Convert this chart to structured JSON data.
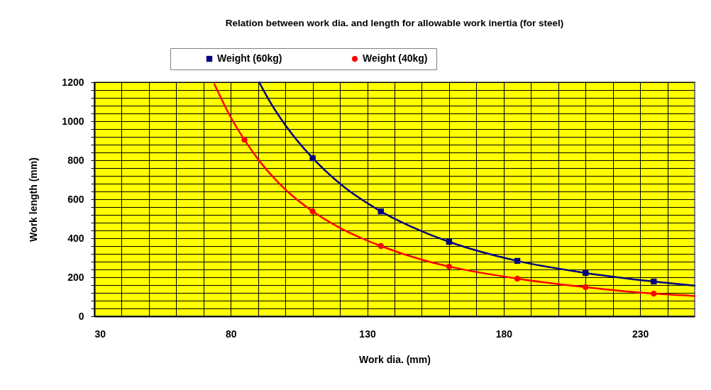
{
  "chart_data": {
    "type": "line",
    "title": "Relation between work dia. and length for allowable work inertia (for steel)",
    "xlabel": "Work dia. (mm)",
    "ylabel": "Work length  (mm)",
    "xlim": [
      30,
      250
    ],
    "xticks": [
      30,
      {
        "value": 40,
        "label": null
      },
      {
        "value": 50,
        "label": null
      },
      {
        "value": 60,
        "label": null
      },
      {
        "value": 70,
        "label": null
      },
      80,
      {
        "value": 90,
        "label": null
      },
      {
        "value": 100,
        "label": null
      },
      {
        "value": 110,
        "label": null
      },
      {
        "value": 120,
        "label": null
      },
      130,
      {
        "value": 140,
        "label": null
      },
      {
        "value": 150,
        "label": null
      },
      {
        "value": 160,
        "label": null
      },
      {
        "value": 170,
        "label": null
      },
      180,
      {
        "value": 190,
        "label": null
      },
      {
        "value": 200,
        "label": null
      },
      {
        "value": 210,
        "label": null
      },
      {
        "value": 220,
        "label": null
      },
      230,
      {
        "value": 240,
        "label": null
      }
    ],
    "ylim": [
      0,
      1200
    ],
    "yticks": [
      0,
      {
        "value": 40,
        "label": null
      },
      {
        "value": 80,
        "label": null
      },
      {
        "value": 120,
        "label": null
      },
      {
        "value": 160,
        "label": null
      },
      200,
      {
        "value": 240,
        "label": null
      },
      {
        "value": 280,
        "label": null
      },
      {
        "value": 320,
        "label": null
      },
      {
        "value": 360,
        "label": null
      },
      400,
      {
        "value": 440,
        "label": null
      },
      {
        "value": 480,
        "label": null
      },
      {
        "value": 520,
        "label": null
      },
      {
        "value": 560,
        "label": null
      },
      600,
      {
        "value": 640,
        "label": null
      },
      {
        "value": 680,
        "label": null
      },
      {
        "value": 720,
        "label": null
      },
      {
        "value": 760,
        "label": null
      },
      800,
      {
        "value": 840,
        "label": null
      },
      {
        "value": 880,
        "label": null
      },
      {
        "value": 920,
        "label": null
      },
      {
        "value": 960,
        "label": null
      },
      1000,
      {
        "value": 1040,
        "label": null
      },
      {
        "value": 1080,
        "label": null
      },
      {
        "value": 1120,
        "label": null
      },
      {
        "value": 1160,
        "label": null
      },
      1200
    ],
    "grid": true,
    "legend": "top",
    "series": [
      {
        "color": "#000080",
        "marker": "none",
        "x": [
          90.4,
          95,
          100,
          110,
          120,
          135,
          150,
          160,
          185,
          210,
          235,
          250
        ],
        "values": [
          1200,
          1085,
          980,
          811,
          680,
          538,
          436,
          382,
          284,
          222,
          178,
          157
        ]
      },
      {
        "color": "#ff0000",
        "marker": "none",
        "x": [
          74,
          80,
          85,
          90,
          100,
          110,
          120,
          135,
          150,
          160,
          185,
          210,
          235,
          250
        ],
        "values": [
          1190,
          1020,
          905,
          805,
          650,
          538,
          453,
          360,
          290,
          255,
          193,
          149,
          116,
          104
        ]
      },
      {
        "type": "scatter",
        "name": "Weight (60kg)",
        "color": "#000080",
        "marker": "square",
        "x": [
          110,
          135,
          160,
          185,
          210,
          235
        ],
        "values": [
          811,
          538,
          382,
          284,
          222,
          178
        ]
      },
      {
        "type": "scatter",
        "name": "Weight  (40kg)",
        "color": "#ff0000",
        "marker": "circle",
        "x": [
          85,
          110,
          135,
          160,
          185,
          210,
          235
        ],
        "values": [
          905,
          538,
          360,
          255,
          193,
          149,
          116
        ]
      }
    ]
  }
}
